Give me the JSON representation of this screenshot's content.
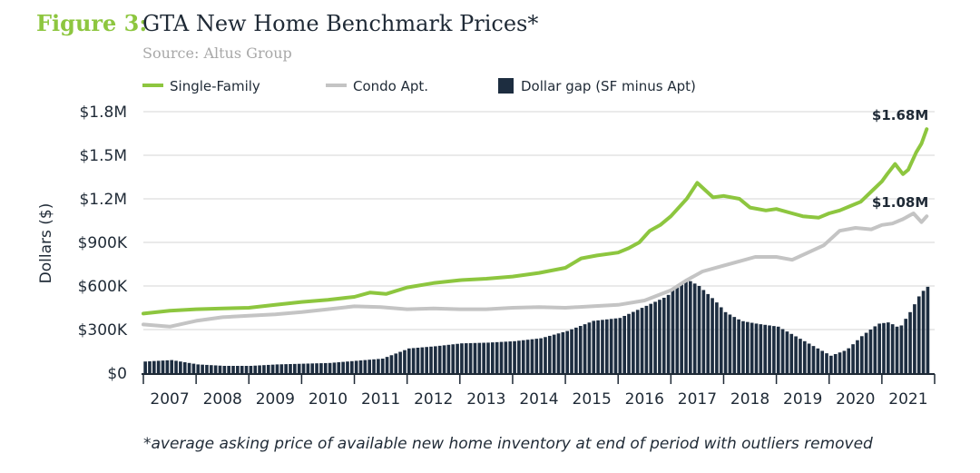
{
  "header": {
    "figure_number": "Figure 3:",
    "title": "GTA New Home Benchmark Prices*",
    "source": "Source: Altus Group"
  },
  "footnote": "*average asking price of available new home inventory at end of period with outliers removed",
  "colors": {
    "single_family": "#8dc63f",
    "condo": "#c4c4c4",
    "gap": "#1d2d40",
    "accent_title": "#8dc63f"
  },
  "chart_data": {
    "type": "line",
    "title": "GTA New Home Benchmark Prices*",
    "ylabel": "Dollars ($)",
    "xlabel": "",
    "ylim": [
      0,
      1800000
    ],
    "yticks": [
      0,
      300000,
      600000,
      900000,
      1200000,
      1500000,
      1800000
    ],
    "ytick_labels": [
      "$0",
      "$300K",
      "$600K",
      "$900K",
      "$1.2M",
      "$1.5M",
      "$1.8M"
    ],
    "xlim": [
      2007,
      2022
    ],
    "xticks": [
      2007,
      2008,
      2009,
      2010,
      2011,
      2012,
      2013,
      2014,
      2015,
      2016,
      2017,
      2018,
      2019,
      2020,
      2021
    ],
    "xtick_labels": [
      "2007",
      "2008",
      "2009",
      "2010",
      "2011",
      "2012",
      "2013",
      "2014",
      "2015",
      "2016",
      "2017",
      "2018",
      "2019",
      "2020",
      "2021"
    ],
    "grid": true,
    "legend": "top-left",
    "series": [
      {
        "name": "Single-Family",
        "type": "line",
        "x": [
          2007.0,
          2007.5,
          2008.0,
          2008.5,
          2009.0,
          2009.5,
          2010.0,
          2010.5,
          2011.0,
          2011.3,
          2011.6,
          2012.0,
          2012.5,
          2013.0,
          2013.5,
          2014.0,
          2014.5,
          2015.0,
          2015.3,
          2015.6,
          2016.0,
          2016.2,
          2016.4,
          2016.6,
          2016.8,
          2017.0,
          2017.3,
          2017.5,
          2017.8,
          2018.0,
          2018.3,
          2018.5,
          2018.8,
          2019.0,
          2019.3,
          2019.5,
          2019.8,
          2020.0,
          2020.2,
          2020.4,
          2020.6,
          2020.8,
          2021.0,
          2021.1,
          2021.25,
          2021.4,
          2021.5,
          2021.65,
          2021.75,
          2021.85
        ],
        "values": [
          410000,
          430000,
          440000,
          445000,
          450000,
          470000,
          490000,
          505000,
          525000,
          555000,
          545000,
          590000,
          620000,
          640000,
          650000,
          665000,
          690000,
          725000,
          790000,
          810000,
          830000,
          860000,
          900000,
          980000,
          1020000,
          1080000,
          1200000,
          1310000,
          1210000,
          1220000,
          1200000,
          1140000,
          1120000,
          1130000,
          1100000,
          1080000,
          1070000,
          1100000,
          1120000,
          1150000,
          1180000,
          1250000,
          1320000,
          1370000,
          1440000,
          1370000,
          1400000,
          1520000,
          1580000,
          1680000
        ]
      },
      {
        "name": "Condo Apt.",
        "type": "line",
        "x": [
          2007.0,
          2007.5,
          2008.0,
          2008.5,
          2009.0,
          2009.5,
          2010.0,
          2010.5,
          2011.0,
          2011.5,
          2012.0,
          2012.5,
          2013.0,
          2013.5,
          2014.0,
          2014.5,
          2015.0,
          2015.5,
          2016.0,
          2016.5,
          2017.0,
          2017.3,
          2017.6,
          2018.0,
          2018.3,
          2018.6,
          2019.0,
          2019.3,
          2019.6,
          2019.9,
          2020.2,
          2020.5,
          2020.8,
          2021.0,
          2021.2,
          2021.4,
          2021.6,
          2021.75,
          2021.85
        ],
        "values": [
          335000,
          320000,
          360000,
          385000,
          395000,
          405000,
          420000,
          440000,
          460000,
          455000,
          440000,
          445000,
          440000,
          440000,
          450000,
          455000,
          450000,
          460000,
          470000,
          500000,
          570000,
          640000,
          700000,
          740000,
          770000,
          800000,
          800000,
          780000,
          830000,
          880000,
          980000,
          1000000,
          990000,
          1020000,
          1030000,
          1060000,
          1100000,
          1040000,
          1080000
        ]
      },
      {
        "name": "Dollar gap (SF minus Apt)",
        "type": "bar",
        "x": [
          2007.0,
          2007.5,
          2008.0,
          2008.5,
          2009.0,
          2009.5,
          2010.0,
          2010.5,
          2011.0,
          2011.5,
          2012.0,
          2012.5,
          2013.0,
          2013.5,
          2014.0,
          2014.5,
          2015.0,
          2015.5,
          2016.0,
          2016.3,
          2016.6,
          2016.9,
          2017.0,
          2017.3,
          2017.5,
          2017.8,
          2018.0,
          2018.3,
          2018.6,
          2019.0,
          2019.3,
          2019.6,
          2020.0,
          2020.3,
          2020.6,
          2020.9,
          2021.1,
          2021.3,
          2021.5,
          2021.7,
          2021.85
        ],
        "values": [
          80000,
          90000,
          60000,
          50000,
          50000,
          60000,
          65000,
          70000,
          85000,
          100000,
          170000,
          185000,
          205000,
          210000,
          220000,
          240000,
          290000,
          360000,
          380000,
          430000,
          480000,
          530000,
          580000,
          640000,
          600000,
          500000,
          420000,
          360000,
          340000,
          320000,
          260000,
          200000,
          120000,
          160000,
          260000,
          340000,
          350000,
          310000,
          420000,
          550000,
          600000
        ]
      }
    ],
    "end_labels": [
      {
        "series": "Single-Family",
        "text": "$1.68M"
      },
      {
        "series": "Condo Apt.",
        "text": "$1.08M"
      }
    ]
  }
}
